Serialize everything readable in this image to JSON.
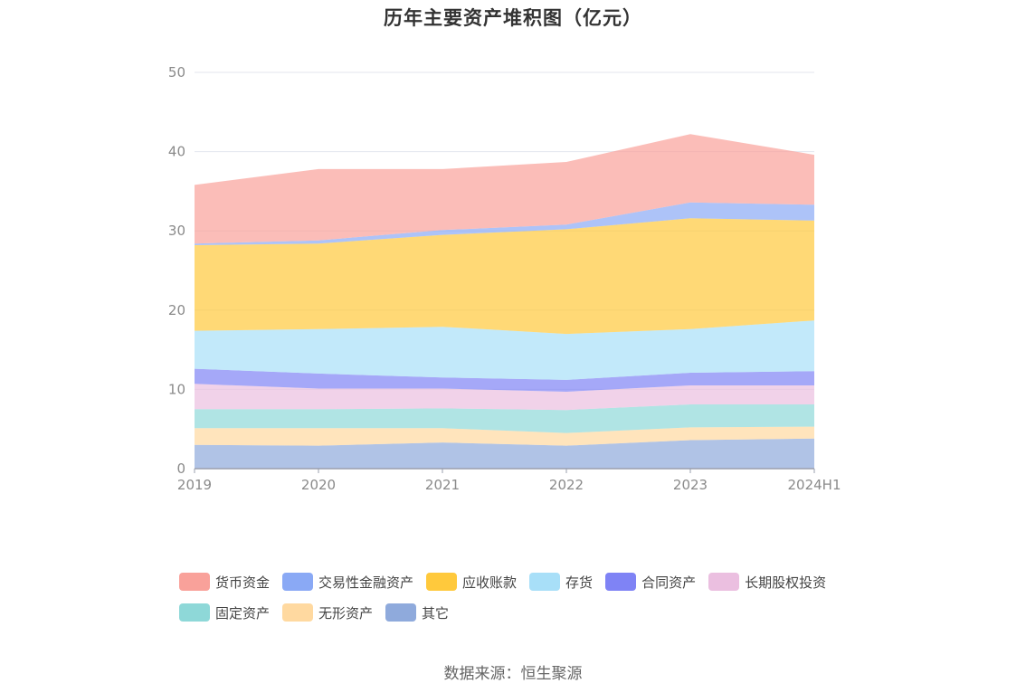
{
  "chart_data": {
    "type": "area",
    "stacked": true,
    "title": "历年主要资产堆积图（亿元）",
    "x": [
      "2019",
      "2020",
      "2021",
      "2022",
      "2023",
      "2024H1"
    ],
    "ylim": [
      0,
      50
    ],
    "yticks": [
      0,
      10,
      20,
      30,
      40,
      50
    ],
    "grid": true,
    "legend_position": "bottom",
    "series": [
      {
        "name": "其它",
        "color": "#8FAADC",
        "values": [
          3.0,
          2.9,
          3.3,
          2.9,
          3.6,
          3.8
        ]
      },
      {
        "name": "无形资产",
        "color": "#FFD9A0",
        "values": [
          2.1,
          2.2,
          1.8,
          1.6,
          1.6,
          1.5
        ]
      },
      {
        "name": "固定资产",
        "color": "#8ED8D8",
        "values": [
          2.4,
          2.4,
          2.5,
          2.9,
          2.9,
          2.8
        ]
      },
      {
        "name": "长期股权投资",
        "color": "#EBBFE0",
        "values": [
          3.2,
          2.6,
          2.5,
          2.3,
          2.4,
          2.4
        ]
      },
      {
        "name": "合同资产",
        "color": "#7F83F5",
        "values": [
          1.9,
          1.9,
          1.4,
          1.5,
          1.6,
          1.8
        ]
      },
      {
        "name": "存货",
        "color": "#A8DFF8",
        "values": [
          4.8,
          5.6,
          6.4,
          5.8,
          5.5,
          6.4
        ]
      },
      {
        "name": "应收账款",
        "color": "#FFC93C",
        "values": [
          10.8,
          10.8,
          11.6,
          13.2,
          14.0,
          12.6
        ]
      },
      {
        "name": "交易性金融资产",
        "color": "#8AA9F5",
        "values": [
          0.2,
          0.4,
          0.6,
          0.6,
          2.0,
          2.0
        ]
      },
      {
        "name": "货币资金",
        "color": "#F9A19A",
        "values": [
          7.4,
          9.0,
          7.7,
          7.9,
          8.6,
          6.3
        ]
      }
    ]
  },
  "legend_order": [
    "货币资金",
    "交易性金融资产",
    "应收账款",
    "存货",
    "合同资产",
    "长期股权投资",
    "固定资产",
    "无形资产",
    "其它"
  ],
  "source_text": "数据来源：恒生聚源"
}
